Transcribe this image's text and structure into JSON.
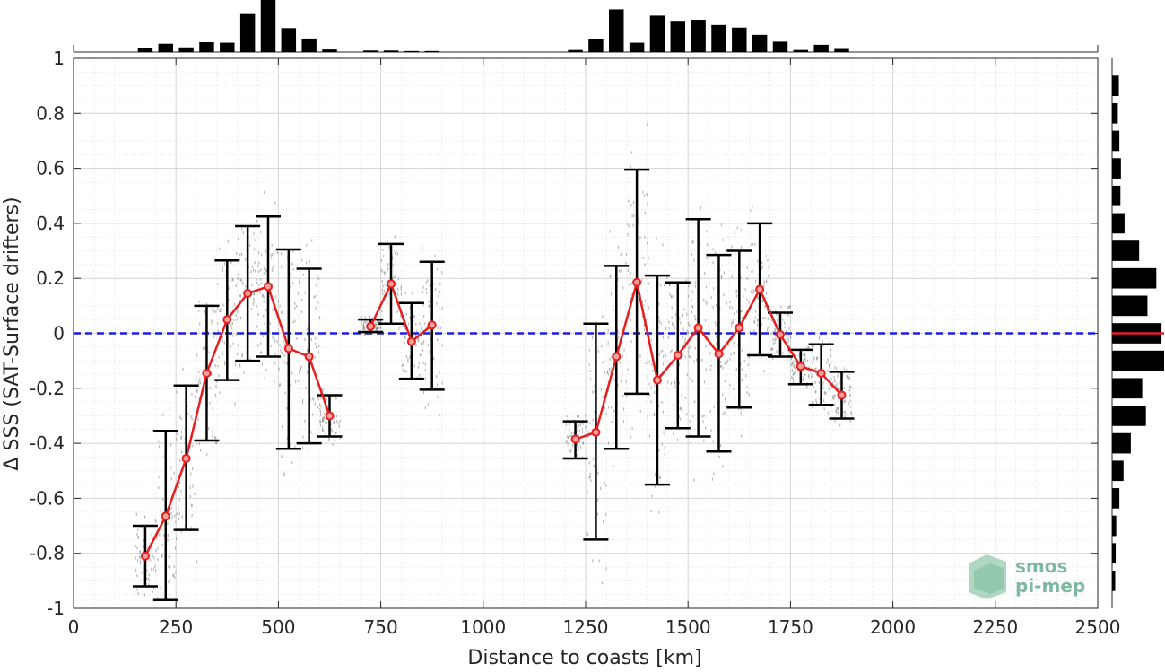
{
  "chart_data": {
    "type": "line",
    "xlabel": "Distance to coasts [km]",
    "ylabel": "Δ SSS (SAT-Surface drifters)",
    "xlim": [
      0,
      2500
    ],
    "ylim": [
      -1,
      1
    ],
    "x_ticks": [
      "0",
      "250",
      "500",
      "750",
      "1000",
      "1250",
      "1500",
      "1750",
      "2000",
      "2250",
      "2500"
    ],
    "y_ticks": [
      "-1",
      "-0.8",
      "-0.6",
      "-0.4",
      "-0.2",
      "0",
      "0.2",
      "0.4",
      "0.6",
      "0.8",
      "1"
    ],
    "grid": true,
    "reference_line": {
      "y": 0,
      "style": "dashed",
      "color": "#1f1fe0"
    },
    "series": [
      {
        "style": "red line with circle markers and black error bars",
        "color": "#e61e1e",
        "segments": [
          {
            "x": [
              175,
              225,
              275,
              325,
              375,
              425,
              475,
              525,
              575,
              625
            ],
            "y": [
              -0.81,
              -0.665,
              -0.455,
              -0.145,
              0.05,
              0.145,
              0.17,
              -0.055,
              -0.085,
              -0.3
            ],
            "err_low": [
              -0.92,
              -0.97,
              -0.715,
              -0.39,
              -0.17,
              -0.1,
              -0.085,
              -0.42,
              -0.4,
              -0.375
            ],
            "err_high": [
              -0.7,
              -0.355,
              -0.19,
              0.1,
              0.265,
              0.39,
              0.425,
              0.305,
              0.235,
              -0.225
            ]
          },
          {
            "x": [
              725,
              775,
              825,
              875
            ],
            "y": [
              0.025,
              0.18,
              -0.03,
              0.03
            ],
            "err_low": [
              0.005,
              0.035,
              -0.165,
              -0.205
            ],
            "err_high": [
              0.05,
              0.325,
              0.11,
              0.26
            ]
          },
          {
            "x": [
              1225,
              1275,
              1325,
              1375,
              1425,
              1475,
              1525,
              1575,
              1625,
              1675,
              1725,
              1775,
              1825,
              1875
            ],
            "y": [
              -0.385,
              -0.36,
              -0.085,
              0.185,
              -0.17,
              -0.08,
              0.02,
              -0.075,
              0.02,
              0.16,
              -0.005,
              -0.12,
              -0.145,
              -0.225
            ],
            "err_low": [
              -0.455,
              -0.75,
              -0.42,
              -0.22,
              -0.55,
              -0.345,
              -0.375,
              -0.43,
              -0.27,
              -0.08,
              -0.085,
              -0.185,
              -0.26,
              -0.31
            ],
            "err_high": [
              -0.32,
              0.035,
              0.245,
              0.595,
              0.21,
              0.185,
              0.415,
              0.285,
              0.3,
              0.4,
              0.075,
              -0.06,
              -0.04,
              -0.14
            ]
          }
        ]
      }
    ],
    "top_histogram": {
      "bin_centers": [
        175,
        225,
        275,
        325,
        375,
        425,
        475,
        525,
        575,
        625,
        725,
        775,
        825,
        875,
        1225,
        1275,
        1325,
        1375,
        1425,
        1475,
        1525,
        1575,
        1625,
        1675,
        1725,
        1775,
        1825,
        1875
      ],
      "relative_heights": [
        0.07,
        0.16,
        0.09,
        0.19,
        0.18,
        0.73,
        1.0,
        0.46,
        0.26,
        0.05,
        0.03,
        0.03,
        0.02,
        0.02,
        0.04,
        0.25,
        0.82,
        0.18,
        0.7,
        0.6,
        0.62,
        0.52,
        0.47,
        0.33,
        0.2,
        0.04,
        0.14,
        0.06
      ]
    },
    "right_histogram": {
      "bin_centers": [
        0.9,
        0.8,
        0.7,
        0.6,
        0.5,
        0.4,
        0.3,
        0.2,
        0.1,
        0,
        -0.1,
        -0.2,
        -0.3,
        -0.4,
        -0.5,
        -0.6,
        -0.7,
        -0.8,
        -0.9
      ],
      "relative_widths": [
        0.13,
        0.11,
        0.14,
        0.17,
        0.16,
        0.24,
        0.52,
        0.85,
        0.68,
        0.95,
        1.0,
        0.58,
        0.65,
        0.36,
        0.22,
        0.14,
        0.08,
        0.07,
        0.06
      ],
      "median_marker": {
        "y": 0,
        "color": "#e61e1e"
      }
    },
    "scatter_cloud_color": "#808080"
  },
  "logo": {
    "line1": "smos",
    "line2": "pi-mep"
  }
}
